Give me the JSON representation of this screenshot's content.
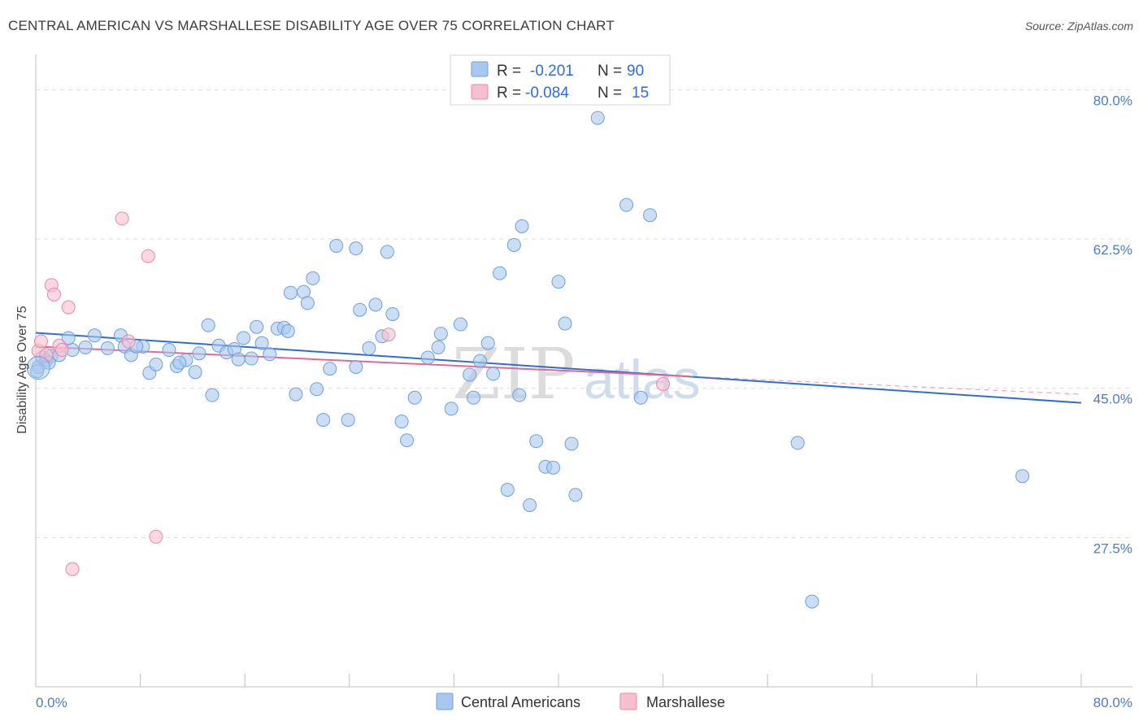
{
  "title": "CENTRAL AMERICAN VS MARSHALLESE DISABILITY AGE OVER 75 CORRELATION CHART",
  "source": "Source: ZipAtlas.com",
  "watermark": {
    "part1": "ZIP",
    "part2": "atlas"
  },
  "legend": {
    "rows": [
      {
        "r_label": "R =",
        "r_value": "-0.201",
        "n_label": "N =",
        "n_value": "90",
        "color": "#a9c8f0",
        "stroke": "#6f9fd8"
      },
      {
        "r_label": "R =",
        "r_value": "-0.084",
        "n_label": "N =",
        "n_value": "15",
        "color": "#f8bfd0",
        "stroke": "#e68aa6"
      }
    ]
  },
  "bottom_legend": [
    {
      "label": "Central Americans",
      "color": "#a9c8f0",
      "stroke": "#6f9fd8"
    },
    {
      "label": "Marshallese",
      "color": "#f8bfd0",
      "stroke": "#e68aa6"
    }
  ],
  "chart_data": {
    "type": "scatter",
    "title": "CENTRAL AMERICAN VS MARSHALLESE DISABILITY AGE OVER 75 CORRELATION CHART",
    "xlabel": "",
    "ylabel": "Disability Age Over 75",
    "xlim": [
      0,
      80
    ],
    "ylim": [
      10,
      83
    ],
    "x_tick_labels": [
      "0.0%",
      "80.0%"
    ],
    "y_ticks": [
      27.5,
      45.0,
      62.5,
      80.0
    ],
    "y_tick_labels": [
      "27.5%",
      "45.0%",
      "62.5%",
      "80.0%"
    ],
    "grid": "horizontal dashed",
    "legend_position": "top-center",
    "series": [
      {
        "name": "Central Americans",
        "color": "#a9c8f0",
        "stroke": "#6f9fd8",
        "trend": {
          "x": [
            0,
            80
          ],
          "y": [
            51.5,
            43.3
          ],
          "color": "#2f6ed1"
        },
        "points": [
          [
            0.2,
            47.5
          ],
          [
            0.5,
            48.6
          ],
          [
            0.8,
            48.3
          ],
          [
            1.2,
            48.8
          ],
          [
            1.8,
            48.9
          ],
          [
            2.8,
            49.5
          ],
          [
            3.8,
            49.8
          ],
          [
            2.5,
            50.9
          ],
          [
            4.5,
            51.2
          ],
          [
            5.5,
            49.7
          ],
          [
            6.5,
            51.2
          ],
          [
            6.8,
            49.9
          ],
          [
            7.3,
            48.9
          ],
          [
            8.2,
            49.9
          ],
          [
            8.7,
            46.8
          ],
          [
            9.2,
            47.8
          ],
          [
            10.2,
            49.5
          ],
          [
            10.8,
            47.6
          ],
          [
            11.5,
            48.3
          ],
          [
            12.2,
            46.9
          ],
          [
            12.5,
            49.1
          ],
          [
            13.2,
            52.4
          ],
          [
            13.5,
            44.2
          ],
          [
            14.0,
            50.0
          ],
          [
            14.6,
            49.2
          ],
          [
            15.2,
            49.6
          ],
          [
            15.5,
            48.4
          ],
          [
            15.9,
            50.9
          ],
          [
            16.5,
            48.5
          ],
          [
            16.9,
            52.2
          ],
          [
            17.3,
            50.3
          ],
          [
            17.9,
            49.0
          ],
          [
            18.5,
            52.0
          ],
          [
            19.0,
            52.1
          ],
          [
            19.3,
            51.7
          ],
          [
            19.5,
            56.2
          ],
          [
            19.9,
            44.3
          ],
          [
            20.5,
            56.3
          ],
          [
            20.8,
            55.0
          ],
          [
            21.2,
            57.9
          ],
          [
            21.5,
            44.9
          ],
          [
            22.0,
            41.3
          ],
          [
            22.5,
            47.3
          ],
          [
            23.0,
            61.7
          ],
          [
            23.9,
            41.3
          ],
          [
            24.5,
            47.5
          ],
          [
            24.5,
            61.4
          ],
          [
            25.5,
            49.7
          ],
          [
            26.0,
            54.8
          ],
          [
            26.5,
            51.1
          ],
          [
            26.9,
            61.0
          ],
          [
            27.3,
            53.7
          ],
          [
            28.0,
            41.1
          ],
          [
            28.4,
            38.9
          ],
          [
            29.0,
            43.9
          ],
          [
            30.0,
            48.6
          ],
          [
            30.8,
            49.8
          ],
          [
            31.0,
            51.4
          ],
          [
            31.8,
            42.6
          ],
          [
            32.5,
            52.5
          ],
          [
            33.2,
            46.6
          ],
          [
            33.5,
            43.9
          ],
          [
            34.0,
            48.2
          ],
          [
            34.6,
            50.3
          ],
          [
            35.0,
            46.7
          ],
          [
            35.5,
            58.5
          ],
          [
            36.1,
            33.1
          ],
          [
            36.6,
            61.8
          ],
          [
            37.0,
            44.2
          ],
          [
            37.2,
            64.0
          ],
          [
            37.8,
            31.3
          ],
          [
            38.3,
            38.8
          ],
          [
            39.0,
            35.8
          ],
          [
            39.6,
            35.7
          ],
          [
            40.0,
            57.5
          ],
          [
            40.5,
            52.6
          ],
          [
            41.0,
            38.5
          ],
          [
            41.3,
            32.5
          ],
          [
            43.0,
            76.7
          ],
          [
            46.3,
            43.9
          ],
          [
            45.2,
            66.5
          ],
          [
            47.0,
            65.3
          ],
          [
            58.3,
            38.6
          ],
          [
            59.4,
            20.0
          ],
          [
            75.5,
            34.7
          ],
          [
            0.1,
            47.0
          ],
          [
            1.0,
            48.0
          ],
          [
            7.7,
            49.9
          ],
          [
            11.0,
            48.0
          ],
          [
            24.8,
            54.2
          ]
        ]
      },
      {
        "name": "Marshallese",
        "color": "#f8bfd0",
        "stroke": "#e68aa6",
        "trend": {
          "x": [
            0,
            50
          ],
          "y": [
            49.9,
            46.4
          ],
          "color": "#e06a93"
        },
        "points": [
          [
            0.2,
            49.4
          ],
          [
            0.4,
            50.5
          ],
          [
            0.8,
            48.9
          ],
          [
            1.2,
            57.1
          ],
          [
            1.4,
            56.0
          ],
          [
            1.8,
            50.0
          ],
          [
            2.0,
            49.5
          ],
          [
            2.5,
            54.5
          ],
          [
            6.6,
            64.9
          ],
          [
            7.1,
            50.5
          ],
          [
            8.6,
            60.5
          ],
          [
            9.2,
            27.6
          ],
          [
            2.8,
            23.8
          ],
          [
            27.0,
            51.3
          ],
          [
            48.0,
            45.5
          ]
        ]
      }
    ]
  }
}
